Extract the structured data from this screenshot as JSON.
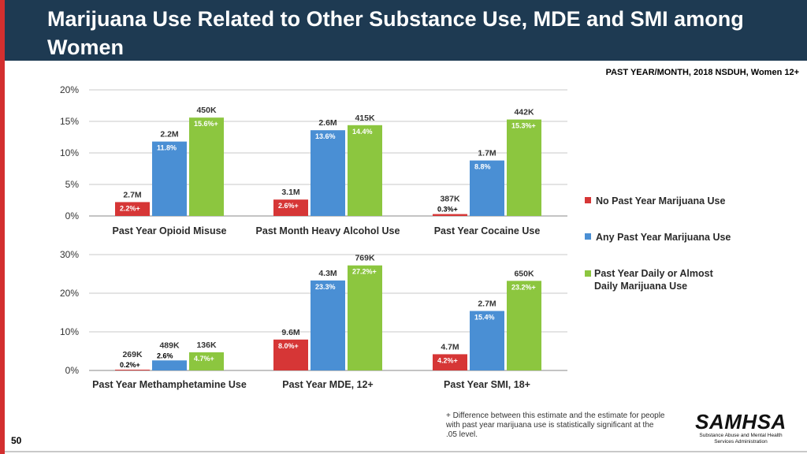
{
  "slide": {
    "title": "Marijuana Use Related to Other Substance Use, MDE and SMI among Women",
    "subtitle": "PAST YEAR/MONTH, 2018 NSDUH, Women 12+",
    "page_number": "50",
    "footnote": "+ Difference between this estimate and the estimate for people with past year marijuana use is statistically significant at the .05 level.",
    "logo": {
      "word": "SAMHSA",
      "subtitle": "Substance Abuse and Mental Health Services Administration"
    }
  },
  "legend": [
    {
      "name": "No Past Year Marijuana Use",
      "color": "#d63636"
    },
    {
      "name": "Any Past Year Marijuana Use",
      "color": "#4a8fd4"
    },
    {
      "name": "Past Year Daily or Almost Daily Marijuana Use",
      "color": "#8cc63f"
    }
  ],
  "chart_data": [
    {
      "type": "bar",
      "ylim": [
        0,
        20
      ],
      "yticks": [
        0,
        5,
        10,
        15,
        20
      ],
      "ytick_labels": [
        "0%",
        "5%",
        "10%",
        "15%",
        "20%"
      ],
      "categories": [
        "Past Year Opioid Misuse",
        "Past Month Heavy Alcohol Use",
        "Past Year Cocaine Use"
      ],
      "series": [
        {
          "name": "No Past Year Marijuana Use",
          "values": [
            2.2,
            2.6,
            0.3
          ],
          "labels": [
            "2.2%+",
            "2.6%+",
            "0.3%+"
          ],
          "counts": [
            "2.7M",
            "3.1M",
            "387K"
          ]
        },
        {
          "name": "Any Past Year Marijuana Use",
          "values": [
            11.8,
            13.6,
            8.8
          ],
          "labels": [
            "11.8%",
            "13.6%",
            "8.8%"
          ],
          "counts": [
            "2.2M",
            "2.6M",
            "1.7M"
          ]
        },
        {
          "name": "Past Year Daily or Almost Daily Marijuana Use",
          "values": [
            15.6,
            14.4,
            15.3
          ],
          "labels": [
            "15.6%+",
            "14.4%",
            "15.3%+"
          ],
          "counts": [
            "450K",
            "415K",
            "442K"
          ]
        }
      ]
    },
    {
      "type": "bar",
      "ylim": [
        0,
        30
      ],
      "yticks": [
        0,
        10,
        20,
        30
      ],
      "ytick_labels": [
        "0%",
        "10%",
        "20%",
        "30%"
      ],
      "categories": [
        "Past Year Methamphetamine Use",
        "Past Year MDE, 12+",
        "Past Year SMI, 18+"
      ],
      "series": [
        {
          "name": "No Past Year Marijuana Use",
          "values": [
            0.2,
            8.0,
            4.2
          ],
          "labels": [
            "0.2%+",
            "8.0%+",
            "4.2%+"
          ],
          "counts": [
            "269K",
            "9.6M",
            "4.7M"
          ]
        },
        {
          "name": "Any Past Year Marijuana Use",
          "values": [
            2.6,
            23.3,
            15.4
          ],
          "labels": [
            "2.6%",
            "23.3%",
            "15.4%"
          ],
          "counts": [
            "489K",
            "4.3M",
            "2.7M"
          ]
        },
        {
          "name": "Past Year Daily or Almost Daily Marijuana Use",
          "values": [
            4.7,
            27.2,
            23.2
          ],
          "labels": [
            "4.7%+",
            "27.2%+",
            "23.2%+"
          ],
          "counts": [
            "136K",
            "769K",
            "650K"
          ]
        }
      ]
    }
  ]
}
